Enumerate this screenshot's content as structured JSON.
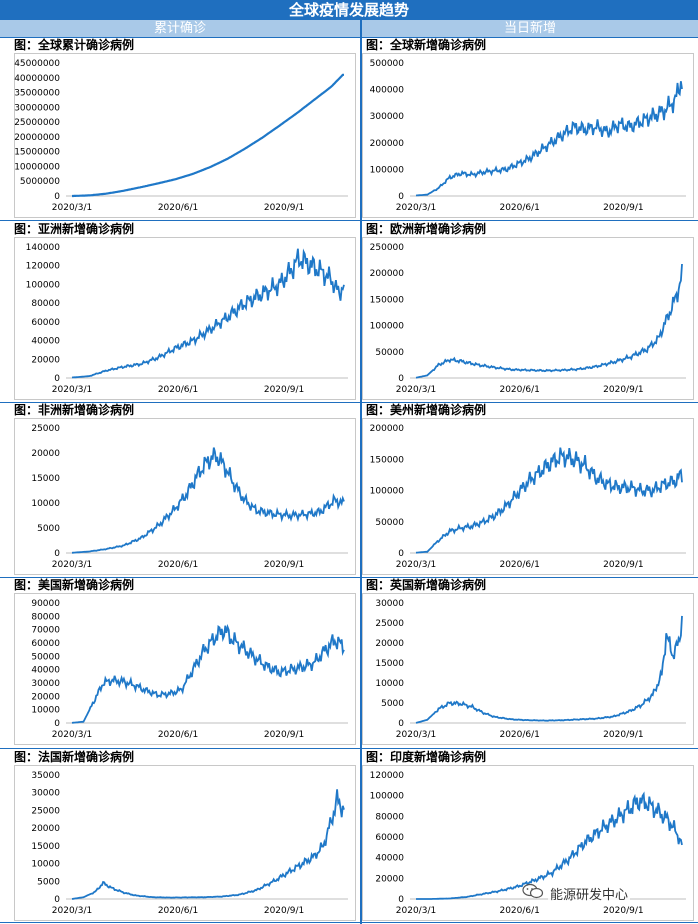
{
  "page": {
    "title": "全球疫情发展趋势",
    "left_header": "累计确诊",
    "right_header": "当日新增",
    "watermark": "能源研发中心",
    "line_color": "#1f78c8",
    "accent_color": "#1f6fbf",
    "header_color": "#a9c9e8"
  },
  "chart_data": [
    {
      "type": "line",
      "title": "图：全球累计确诊病例",
      "x_ticks": [
        "2020/3/1",
        "2020/6/1",
        "2020/9/1"
      ],
      "ylim": [
        0,
        45000000
      ],
      "y_step": 5000000,
      "points": [
        [
          0,
          0
        ],
        [
          15,
          200000
        ],
        [
          30,
          800000
        ],
        [
          45,
          1800000
        ],
        [
          60,
          3000000
        ],
        [
          75,
          4300000
        ],
        [
          90,
          5700000
        ],
        [
          105,
          7500000
        ],
        [
          120,
          9800000
        ],
        [
          135,
          12600000
        ],
        [
          150,
          16000000
        ],
        [
          165,
          19700000
        ],
        [
          180,
          23800000
        ],
        [
          195,
          28000000
        ],
        [
          210,
          32500000
        ],
        [
          225,
          37000000
        ],
        [
          235,
          41000000
        ]
      ]
    },
    {
      "type": "line",
      "title": "图：全球新增确诊病例",
      "x_ticks": [
        "2020/3/1",
        "2020/6/1",
        "2020/9/1"
      ],
      "ylim": [
        0,
        500000
      ],
      "y_step": 100000,
      "points": [
        [
          0,
          2000
        ],
        [
          10,
          5000
        ],
        [
          20,
          30000
        ],
        [
          30,
          70000
        ],
        [
          40,
          85000
        ],
        [
          50,
          80000
        ],
        [
          60,
          90000
        ],
        [
          70,
          95000
        ],
        [
          80,
          100000
        ],
        [
          90,
          120000
        ],
        [
          100,
          140000
        ],
        [
          110,
          170000
        ],
        [
          120,
          200000
        ],
        [
          130,
          230000
        ],
        [
          140,
          260000
        ],
        [
          150,
          250000
        ],
        [
          160,
          260000
        ],
        [
          170,
          240000
        ],
        [
          180,
          270000
        ],
        [
          190,
          260000
        ],
        [
          200,
          280000
        ],
        [
          210,
          300000
        ],
        [
          220,
          320000
        ],
        [
          230,
          360000
        ],
        [
          235,
          430000
        ]
      ]
    },
    {
      "type": "line",
      "title": "图：亚洲新增确诊病例",
      "x_ticks": [
        "2020/3/1",
        "2020/6/1",
        "2020/9/1"
      ],
      "ylim": [
        0,
        140000
      ],
      "y_step": 20000,
      "points": [
        [
          0,
          500
        ],
        [
          15,
          2000
        ],
        [
          30,
          8000
        ],
        [
          45,
          12000
        ],
        [
          60,
          15000
        ],
        [
          75,
          22000
        ],
        [
          90,
          32000
        ],
        [
          105,
          40000
        ],
        [
          120,
          52000
        ],
        [
          135,
          65000
        ],
        [
          150,
          80000
        ],
        [
          165,
          90000
        ],
        [
          180,
          100000
        ],
        [
          190,
          115000
        ],
        [
          197,
          128000
        ],
        [
          205,
          122000
        ],
        [
          215,
          115000
        ],
        [
          225,
          105000
        ],
        [
          232,
          90000
        ],
        [
          235,
          98000
        ]
      ]
    },
    {
      "type": "line",
      "title": "图：欧洲新增确诊病例",
      "x_ticks": [
        "2020/3/1",
        "2020/6/1",
        "2020/9/1"
      ],
      "ylim": [
        0,
        250000
      ],
      "y_step": 50000,
      "points": [
        [
          0,
          500
        ],
        [
          10,
          5000
        ],
        [
          20,
          25000
        ],
        [
          30,
          35000
        ],
        [
          40,
          32000
        ],
        [
          55,
          25000
        ],
        [
          70,
          20000
        ],
        [
          85,
          16000
        ],
        [
          100,
          15000
        ],
        [
          115,
          14000
        ],
        [
          130,
          15000
        ],
        [
          145,
          17000
        ],
        [
          160,
          22000
        ],
        [
          175,
          30000
        ],
        [
          190,
          40000
        ],
        [
          205,
          55000
        ],
        [
          215,
          75000
        ],
        [
          222,
          110000
        ],
        [
          228,
          140000
        ],
        [
          233,
          170000
        ],
        [
          236,
          195000
        ]
      ]
    },
    {
      "type": "line",
      "title": "图：非洲新增确诊病例",
      "x_ticks": [
        "2020/3/1",
        "2020/6/1",
        "2020/9/1"
      ],
      "ylim": [
        0,
        25000
      ],
      "y_step": 5000,
      "points": [
        [
          0,
          50
        ],
        [
          15,
          300
        ],
        [
          30,
          800
        ],
        [
          45,
          1500
        ],
        [
          60,
          3000
        ],
        [
          75,
          5500
        ],
        [
          90,
          9000
        ],
        [
          100,
          12000
        ],
        [
          110,
          16000
        ],
        [
          118,
          18500
        ],
        [
          125,
          19500
        ],
        [
          132,
          17500
        ],
        [
          140,
          14000
        ],
        [
          150,
          10500
        ],
        [
          160,
          8500
        ],
        [
          175,
          7800
        ],
        [
          190,
          7500
        ],
        [
          205,
          7800
        ],
        [
          215,
          8200
        ],
        [
          222,
          9500
        ],
        [
          228,
          10500
        ],
        [
          235,
          10000
        ]
      ]
    },
    {
      "type": "line",
      "title": "图：美州新增确诊病例",
      "x_ticks": [
        "2020/3/1",
        "2020/6/1",
        "2020/9/1"
      ],
      "ylim": [
        0,
        200000
      ],
      "y_step": 50000,
      "points": [
        [
          0,
          500
        ],
        [
          10,
          2000
        ],
        [
          20,
          20000
        ],
        [
          30,
          35000
        ],
        [
          40,
          40000
        ],
        [
          50,
          43000
        ],
        [
          60,
          50000
        ],
        [
          70,
          60000
        ],
        [
          80,
          75000
        ],
        [
          90,
          95000
        ],
        [
          100,
          115000
        ],
        [
          110,
          130000
        ],
        [
          120,
          145000
        ],
        [
          130,
          155000
        ],
        [
          140,
          150000
        ],
        [
          150,
          140000
        ],
        [
          160,
          120000
        ],
        [
          170,
          110000
        ],
        [
          180,
          105000
        ],
        [
          190,
          105000
        ],
        [
          200,
          100000
        ],
        [
          210,
          100000
        ],
        [
          220,
          110000
        ],
        [
          230,
          115000
        ],
        [
          235,
          125000
        ]
      ]
    },
    {
      "type": "line",
      "title": "图：美国新增确诊病例",
      "x_ticks": [
        "2020/3/1",
        "2020/6/1",
        "2020/9/1"
      ],
      "ylim": [
        0,
        90000
      ],
      "y_step": 10000,
      "points": [
        [
          0,
          100
        ],
        [
          10,
          1000
        ],
        [
          20,
          18000
        ],
        [
          27,
          30000
        ],
        [
          35,
          32000
        ],
        [
          45,
          31000
        ],
        [
          55,
          28000
        ],
        [
          65,
          24000
        ],
        [
          75,
          21000
        ],
        [
          85,
          22000
        ],
        [
          95,
          25000
        ],
        [
          105,
          40000
        ],
        [
          115,
          55000
        ],
        [
          125,
          65000
        ],
        [
          132,
          70000
        ],
        [
          140,
          62000
        ],
        [
          150,
          55000
        ],
        [
          160,
          48000
        ],
        [
          170,
          42000
        ],
        [
          180,
          38000
        ],
        [
          190,
          40000
        ],
        [
          200,
          42000
        ],
        [
          210,
          45000
        ],
        [
          220,
          55000
        ],
        [
          228,
          62000
        ],
        [
          235,
          58000
        ]
      ]
    },
    {
      "type": "line",
      "title": "图：英国新增确诊病例",
      "x_ticks": [
        "2020/3/1",
        "2020/6/1",
        "2020/9/1"
      ],
      "ylim": [
        0,
        30000
      ],
      "y_step": 5000,
      "points": [
        [
          0,
          20
        ],
        [
          10,
          800
        ],
        [
          20,
          3500
        ],
        [
          30,
          5000
        ],
        [
          40,
          4800
        ],
        [
          50,
          4000
        ],
        [
          60,
          2500
        ],
        [
          70,
          1500
        ],
        [
          85,
          900
        ],
        [
          100,
          700
        ],
        [
          115,
          600
        ],
        [
          130,
          700
        ],
        [
          145,
          900
        ],
        [
          160,
          1100
        ],
        [
          175,
          1600
        ],
        [
          190,
          3000
        ],
        [
          200,
          4500
        ],
        [
          210,
          7000
        ],
        [
          218,
          12000
        ],
        [
          222,
          22000
        ],
        [
          228,
          17000
        ],
        [
          233,
          20000
        ],
        [
          236,
          26000
        ]
      ]
    },
    {
      "type": "line",
      "title": "图：法国新增确诊病例",
      "x_ticks": [
        "2020/3/1",
        "2020/6/1",
        "2020/9/1"
      ],
      "ylim": [
        0,
        35000
      ],
      "y_step": 5000,
      "points": [
        [
          0,
          10
        ],
        [
          10,
          500
        ],
        [
          20,
          2000
        ],
        [
          27,
          4500
        ],
        [
          35,
          3000
        ],
        [
          45,
          1800
        ],
        [
          55,
          1000
        ],
        [
          70,
          500
        ],
        [
          85,
          400
        ],
        [
          100,
          450
        ],
        [
          115,
          500
        ],
        [
          130,
          700
        ],
        [
          145,
          1200
        ],
        [
          160,
          2500
        ],
        [
          175,
          5000
        ],
        [
          190,
          8000
        ],
        [
          200,
          10000
        ],
        [
          210,
          12000
        ],
        [
          218,
          15000
        ],
        [
          225,
          22000
        ],
        [
          230,
          28000
        ],
        [
          236,
          25000
        ]
      ]
    },
    {
      "type": "line",
      "title": "图：印度新增确诊病例",
      "x_ticks": [
        "2020/3/1",
        "2020/6/1",
        "2020/9/1"
      ],
      "ylim": [
        0,
        120000
      ],
      "y_step": 20000,
      "points": [
        [
          0,
          0
        ],
        [
          15,
          50
        ],
        [
          30,
          500
        ],
        [
          45,
          2000
        ],
        [
          60,
          5000
        ],
        [
          75,
          8000
        ],
        [
          90,
          12000
        ],
        [
          105,
          18000
        ],
        [
          120,
          25000
        ],
        [
          135,
          38000
        ],
        [
          150,
          55000
        ],
        [
          165,
          68000
        ],
        [
          178,
          78000
        ],
        [
          190,
          88000
        ],
        [
          198,
          95000
        ],
        [
          206,
          92000
        ],
        [
          214,
          85000
        ],
        [
          222,
          78000
        ],
        [
          228,
          70000
        ],
        [
          233,
          60000
        ],
        [
          236,
          52000
        ]
      ]
    }
  ]
}
